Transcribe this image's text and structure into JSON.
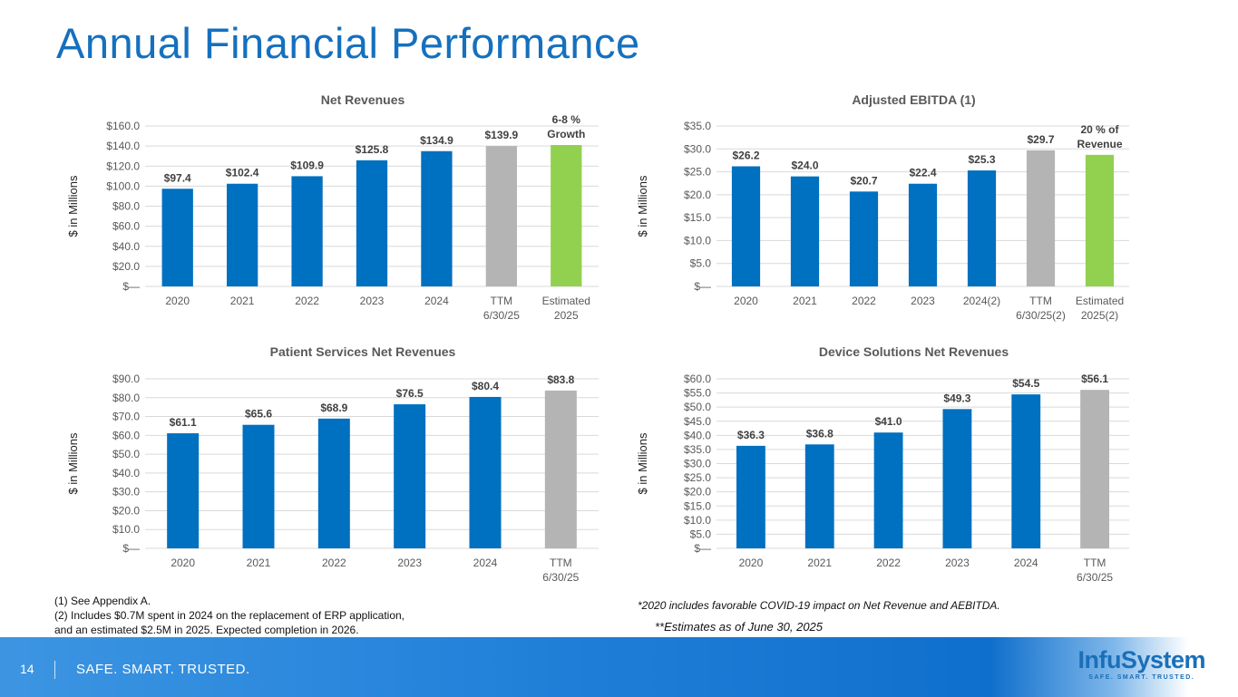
{
  "page_title": "Annual Financial Performance",
  "colors": {
    "actual": "#0070C0",
    "ttm": "#B4B4B4",
    "estimate": "#92D050",
    "title": "#1570BE"
  },
  "chart_data": [
    {
      "type": "bar",
      "title": "Net Revenues",
      "ylabel": "$ in Millions",
      "categories": [
        "2020",
        "2021",
        "2022",
        "2023",
        "2024",
        "TTM\n6/30/25",
        "Estimated\n2025"
      ],
      "values": [
        97.4,
        102.4,
        109.9,
        125.8,
        134.9,
        139.9,
        141
      ],
      "data_labels": [
        "$97.4",
        "$102.4",
        "$109.9",
        "$125.8",
        "$134.9",
        "$139.9",
        "6-8 %\nGrowth"
      ],
      "bar_kinds": [
        "actual",
        "actual",
        "actual",
        "actual",
        "actual",
        "ttm",
        "estimate"
      ],
      "ylim": [
        0,
        160
      ],
      "y_ticks": [
        "$—",
        "$20.0",
        "$40.0",
        "$60.0",
        "$80.0",
        "$100.0",
        "$120.0",
        "$140.0",
        "$160.0"
      ],
      "grid": true
    },
    {
      "type": "bar",
      "title": "Adjusted EBITDA (1)",
      "ylabel": "$ in Millions",
      "categories": [
        "2020",
        "2021",
        "2022",
        "2023",
        "2024(2)",
        "TTM\n6/30/25(2)",
        "Estimated\n2025(2)"
      ],
      "values": [
        26.2,
        24.0,
        20.7,
        22.4,
        25.3,
        29.7,
        28.7
      ],
      "data_labels": [
        "$26.2",
        "$24.0",
        "$20.7",
        "$22.4",
        "$25.3",
        "$29.7",
        "20 % of\nRevenue"
      ],
      "bar_kinds": [
        "actual",
        "actual",
        "actual",
        "actual",
        "actual",
        "ttm",
        "estimate"
      ],
      "ylim": [
        0,
        35
      ],
      "y_ticks": [
        "$—",
        "$5.0",
        "$10.0",
        "$15.0",
        "$20.0",
        "$25.0",
        "$30.0",
        "$35.0"
      ],
      "grid": true
    },
    {
      "type": "bar",
      "title": "Patient Services Net Revenues",
      "ylabel": "$ in Millions",
      "categories": [
        "2020",
        "2021",
        "2022",
        "2023",
        "2024",
        "TTM\n6/30/25"
      ],
      "values": [
        61.1,
        65.6,
        68.9,
        76.5,
        80.4,
        83.8
      ],
      "data_labels": [
        "$61.1",
        "$65.6",
        "$68.9",
        "$76.5",
        "$80.4",
        "$83.8"
      ],
      "bar_kinds": [
        "actual",
        "actual",
        "actual",
        "actual",
        "actual",
        "ttm"
      ],
      "ylim": [
        0,
        90
      ],
      "y_ticks": [
        "$—",
        "$10.0",
        "$20.0",
        "$30.0",
        "$40.0",
        "$50.0",
        "$60.0",
        "$70.0",
        "$80.0",
        "$90.0"
      ],
      "grid": true
    },
    {
      "type": "bar",
      "title": "Device Solutions Net Revenues",
      "ylabel": "$ in Millions",
      "categories": [
        "2020",
        "2021",
        "2022",
        "2023",
        "2024",
        "TTM\n6/30/25"
      ],
      "values": [
        36.3,
        36.8,
        41.0,
        49.3,
        54.5,
        56.1
      ],
      "data_labels": [
        "$36.3",
        "$36.8",
        "$41.0",
        "$49.3",
        "$54.5",
        "$56.1"
      ],
      "bar_kinds": [
        "actual",
        "actual",
        "actual",
        "actual",
        "actual",
        "ttm"
      ],
      "ylim": [
        0,
        60
      ],
      "y_ticks": [
        "$—",
        "$5.0",
        "$10.0",
        "$15.0",
        "$20.0",
        "$25.0",
        "$30.0",
        "$35.0",
        "$40.0",
        "$45.0",
        "$50.0",
        "$55.0",
        "$60.0"
      ],
      "grid": true
    }
  ],
  "notes": {
    "n1": "(1) See Appendix A.",
    "n2a": "(2) Includes $0.7M spent in 2024 on the replacement of ERP application,",
    "n2b": "and an estimated $2.5M in 2025. Expected completion in 2026.",
    "covid": "*2020 includes favorable COVID-19 impact on Net Revenue and AEBITDA.",
    "estimates": "**Estimates as of  June 30, 2025"
  },
  "footer": {
    "page_number": "14",
    "tagline": "SAFE. SMART. TRUSTED.",
    "logo_name": "InfuSystem",
    "logo_tagline": "SAFE. SMART. TRUSTED."
  }
}
